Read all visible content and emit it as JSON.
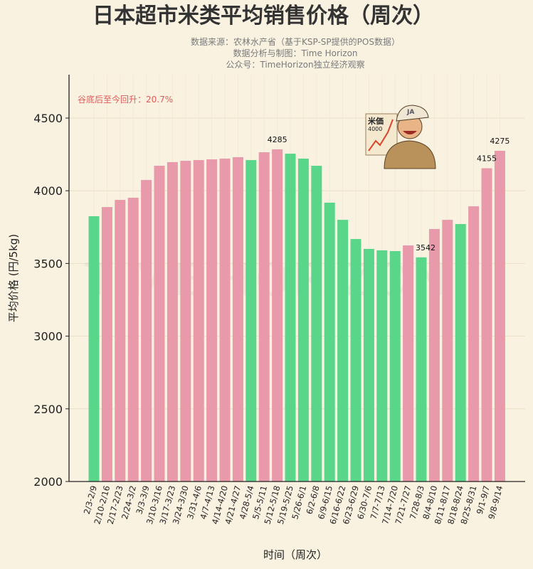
{
  "chart_data": {
    "type": "bar",
    "title": "日本超市米类平均销售价格（周次）",
    "subtitle": [
      "数据来源：农林水产省（基于KSP-SP提供的POS数据）",
      "数据分析与制图：Time Horizon",
      "公众号：TimeHorizon独立经济观察"
    ],
    "xlabel": "时间（周次）",
    "ylabel": "平均价格 (円/5kg)",
    "ylim": [
      2000,
      4800
    ],
    "yticks": [
      2000,
      2500,
      3000,
      3500,
      4000,
      4500
    ],
    "grid": true,
    "categories": [
      "2/3-2/9",
      "2/10-2/16",
      "2/17-2/23",
      "2/24-3/2",
      "3/3-3/9",
      "3/10-3/16",
      "3/17-3/23",
      "3/24-3/30",
      "3/31-4/6",
      "4/7-4/13",
      "4/14-4/20",
      "4/21-4/27",
      "4/28-5/4",
      "5/5-5/11",
      "5/12-5/18",
      "5/19-5/25",
      "5/26-6/1",
      "6/2-6/8",
      "6/9-6/15",
      "6/16-6/22",
      "6/23-6/29",
      "6/30-7/6",
      "7/7-7/13",
      "7/14-7/20",
      "7/21-7/27",
      "7/28-8/3",
      "8/4-8/10",
      "8/11-8/17",
      "8/18-8/24",
      "8/25-8/31",
      "9/1-9/7",
      "9/8-9/14"
    ],
    "values": [
      3825,
      3888,
      3937,
      3952,
      4074,
      4172,
      4197,
      4206,
      4211,
      4216,
      4221,
      4231,
      4211,
      4265,
      4285,
      4255,
      4221,
      4172,
      3918,
      3800,
      3668,
      3600,
      3590,
      3585,
      3624,
      3542,
      3737,
      3800,
      3771,
      3893,
      4155,
      4275
    ],
    "colors": {
      "up": "#e89aab",
      "down": "#5ad68a"
    },
    "data_labels": [
      {
        "index": 14,
        "text": "4285"
      },
      {
        "index": 25,
        "text": "3542"
      },
      {
        "index": 30,
        "text": "4155"
      },
      {
        "index": 31,
        "text": "4275"
      }
    ],
    "annotation": "谷底后至今回升：20.7%",
    "annotation_color": "#e05a5a",
    "watermark": "TIME HORIZON",
    "illustration": {
      "icon": "happy-farmer-ja-cap-with-rising-chart",
      "sign_text": "米価",
      "sign_value": "4000",
      "cap_text": "JA"
    }
  }
}
